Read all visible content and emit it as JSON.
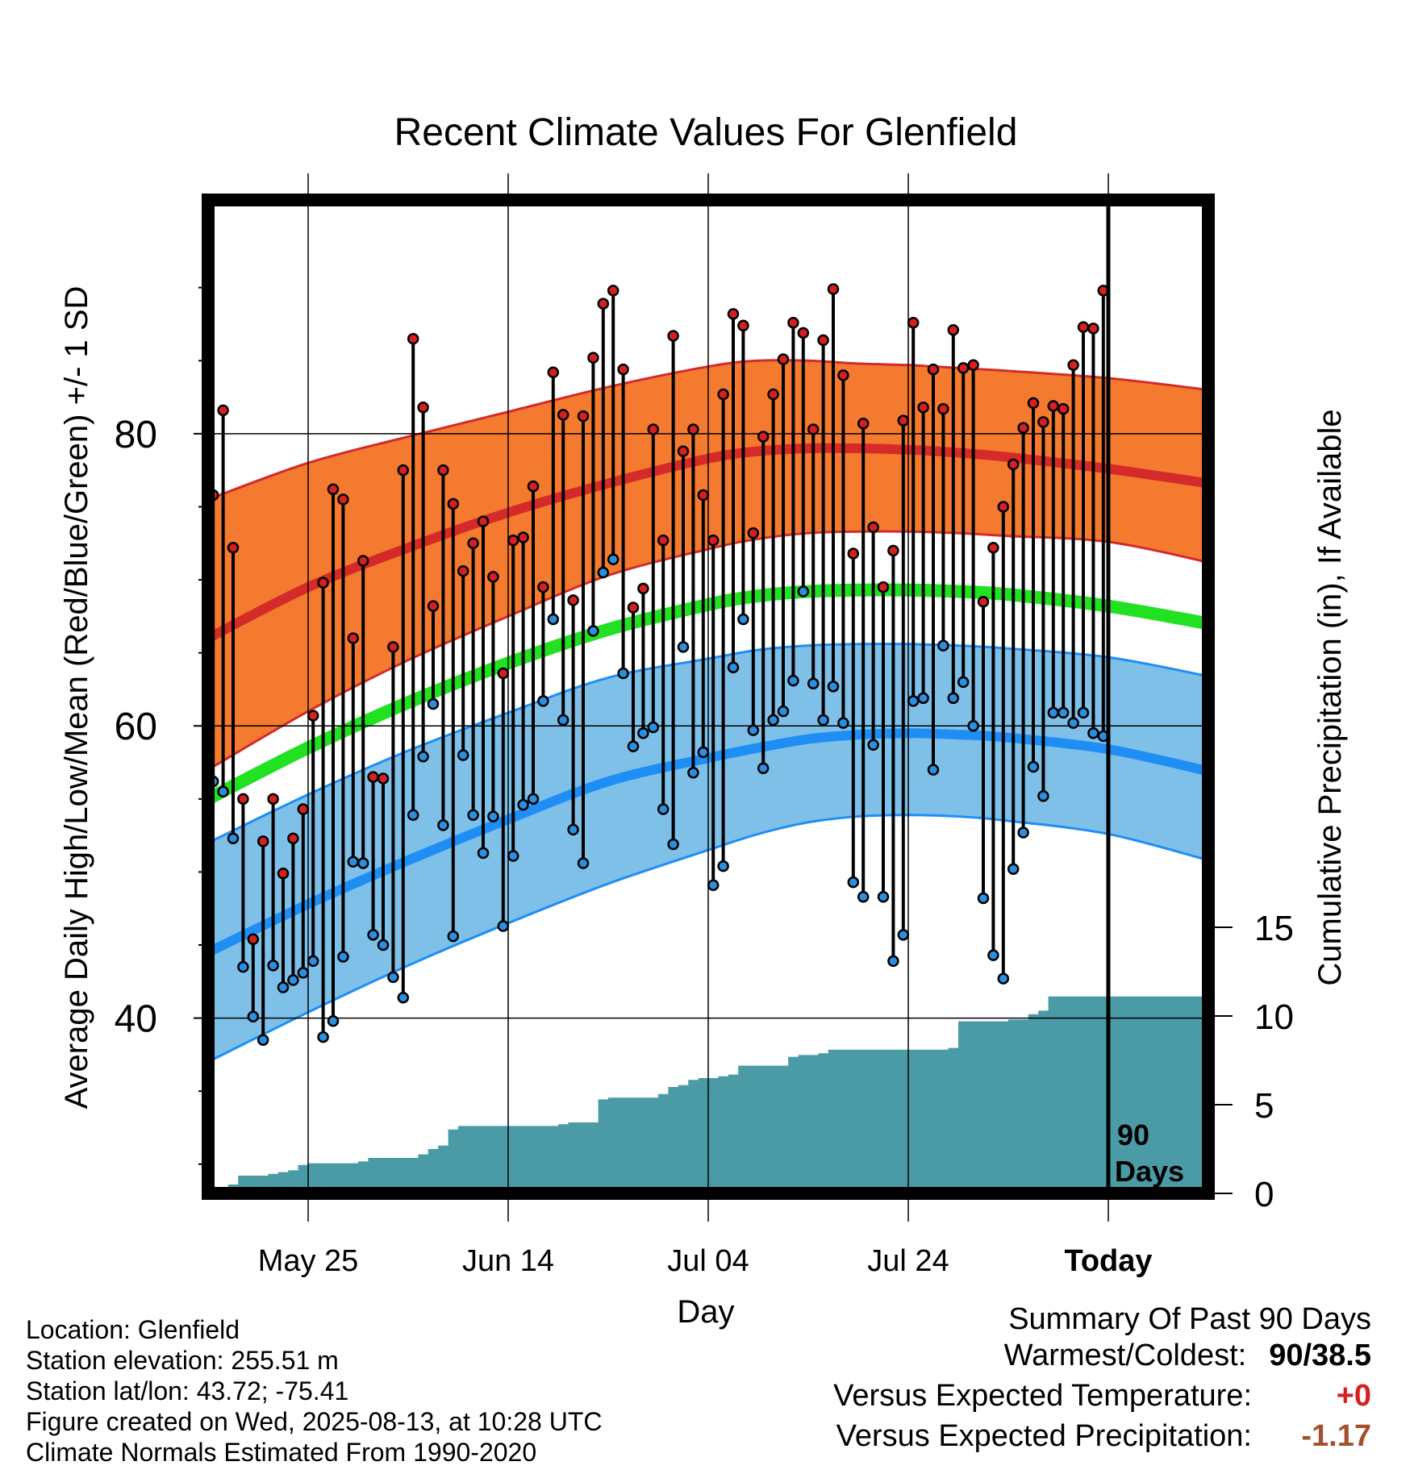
{
  "colors": {
    "frame": "#000000",
    "high_band": "#f47a30",
    "high_mean_line": "#d42a2a",
    "low_band": "#7fc0e8",
    "low_mean_line": "#1e8ef5",
    "mean_line": "#22e022",
    "precip_fill": "#4a9ba5",
    "high_dot": "#d62020",
    "low_dot": "#2a8fe0",
    "temp_diff": "#d62020",
    "precip_diff": "#a0522d"
  },
  "chart_data": {
    "type": "line",
    "title": "Recent Climate Values For Glenfield",
    "xlabel": "Day",
    "ylabel": "Average Daily High/Low/Mean (Red/Blue/Green) +/- 1 SD",
    "y2label": "Cumulative Precipitation (in), If Available",
    "ylim": [
      28,
      96
    ],
    "y2lim": [
      0,
      56
    ],
    "yticks": [
      40,
      60,
      80
    ],
    "y2ticks": [
      0,
      5,
      10,
      15
    ],
    "xlim": [
      0,
      100
    ],
    "xticks": [
      {
        "x": 10,
        "label": "May 25"
      },
      {
        "x": 30,
        "label": "Jun 14"
      },
      {
        "x": 50,
        "label": "Jul 04"
      },
      {
        "x": 70,
        "label": "Jul 24"
      },
      {
        "x": 90,
        "label": "Today"
      }
    ],
    "today_x": 90,
    "today_label": [
      "90",
      "Days"
    ],
    "grid": true,
    "normals": {
      "x": [
        0,
        10,
        20,
        30,
        40,
        50,
        55,
        60,
        65,
        70,
        75,
        80,
        90,
        100
      ],
      "high_mean": [
        66,
        69.5,
        72.2,
        74.6,
        76.6,
        78.3,
        78.8,
        79,
        79,
        78.9,
        78.7,
        78.4,
        77.6,
        76.6
      ],
      "high_upper": [
        75.5,
        78,
        79.8,
        81.5,
        83.2,
        84.6,
        85,
        85,
        84.8,
        84.7,
        84.5,
        84.3,
        83.8,
        83
      ],
      "high_lower": [
        57,
        61,
        64.5,
        67.5,
        70.3,
        72.1,
        72.8,
        73.2,
        73.3,
        73.3,
        73.2,
        73,
        72.6,
        71.2
      ],
      "mean": [
        55,
        58.5,
        61.6,
        64.3,
        66.6,
        68.3,
        68.9,
        69.2,
        69.3,
        69.3,
        69.2,
        69,
        68.2,
        67
      ],
      "low_mean": [
        44.5,
        47.8,
        50.8,
        53.6,
        56.2,
        57.8,
        58.5,
        59.1,
        59.4,
        59.5,
        59.4,
        59.2,
        58.4,
        56.9
      ],
      "low_upper": [
        52,
        55.3,
        58.3,
        60.9,
        63.3,
        64.6,
        65.2,
        65.5,
        65.6,
        65.6,
        65.5,
        65.3,
        64.7,
        63.4
      ],
      "low_lower": [
        37,
        40.4,
        43.6,
        46.5,
        49.2,
        51.5,
        52.6,
        53.4,
        53.8,
        53.9,
        53.8,
        53.5,
        52.6,
        50.8
      ]
    },
    "series": [
      {
        "name": "High",
        "x": [
          0,
          1,
          2,
          3,
          4,
          5,
          6,
          7,
          8,
          9,
          10,
          11,
          12,
          13,
          14,
          15,
          16,
          17,
          18,
          19,
          20,
          21,
          22,
          23,
          24,
          25,
          26,
          27,
          28,
          29,
          30,
          31,
          32,
          33,
          34,
          35,
          36,
          37,
          38,
          39,
          40,
          41,
          42,
          43,
          44,
          45,
          46,
          47,
          48,
          49,
          50,
          51,
          52,
          53,
          54,
          55,
          56,
          57,
          58,
          59,
          60,
          61,
          62,
          63,
          64,
          65,
          66,
          67,
          68,
          69,
          70,
          71,
          72,
          73,
          74,
          75,
          76,
          77,
          78,
          79,
          80,
          81,
          82,
          83,
          84,
          85,
          86,
          87,
          88,
          89
        ],
        "values": [
          75.8,
          81.6,
          72.2,
          55,
          45.4,
          52.1,
          55,
          49.9,
          52.3,
          54.3,
          60.7,
          69.8,
          76.2,
          75.5,
          66,
          71.3,
          56.5,
          56.4,
          65.4,
          77.5,
          86.5,
          81.8,
          68.2,
          77.5,
          75.2,
          70.6,
          72.5,
          74,
          70.2,
          63.6,
          72.7,
          72.9,
          76.4,
          69.5,
          84.2,
          81.3,
          68.6,
          81.2,
          85.2,
          88.9,
          89.8,
          84.4,
          68.1,
          69.4,
          80.3,
          72.7,
          86.7,
          78.8,
          80.3,
          75.8,
          72.7,
          82.7,
          88.2,
          87.4,
          73.2,
          79.8,
          82.7,
          85.1,
          87.6,
          86.9,
          80.3,
          86.4,
          89.9,
          84,
          71.8,
          80.7,
          73.6,
          69.5,
          72,
          80.9,
          87.6,
          81.8,
          84.4,
          81.7,
          87.1,
          84.5,
          84.7,
          68.5,
          72.2,
          75,
          77.9,
          80.4,
          82.1,
          80.8,
          81.9,
          81.7,
          84.7,
          87.3,
          87.2,
          89.8
        ]
      },
      {
        "name": "Low",
        "x": [
          0,
          1,
          2,
          3,
          4,
          5,
          6,
          7,
          8,
          9,
          10,
          11,
          12,
          13,
          14,
          15,
          16,
          17,
          18,
          19,
          20,
          21,
          22,
          23,
          24,
          25,
          26,
          27,
          28,
          29,
          30,
          31,
          32,
          33,
          34,
          35,
          36,
          37,
          38,
          39,
          40,
          41,
          42,
          43,
          44,
          45,
          46,
          47,
          48,
          49,
          50,
          51,
          52,
          53,
          54,
          55,
          56,
          57,
          58,
          59,
          60,
          61,
          62,
          63,
          64,
          65,
          66,
          67,
          68,
          69,
          70,
          71,
          72,
          73,
          74,
          75,
          76,
          77,
          78,
          79,
          80,
          81,
          82,
          83,
          84,
          85,
          86,
          87,
          88,
          89
        ],
        "values": [
          56.2,
          55.5,
          52.3,
          43.5,
          40.1,
          38.5,
          43.6,
          42.1,
          42.6,
          43.1,
          43.9,
          38.7,
          39.8,
          44.2,
          50.7,
          50.6,
          45.7,
          45,
          42.8,
          41.4,
          53.9,
          57.9,
          61.5,
          53.2,
          45.6,
          58,
          53.9,
          51.3,
          53.8,
          46.3,
          51.1,
          54.6,
          55,
          61.7,
          67.3,
          60.4,
          52.9,
          50.6,
          66.5,
          70.5,
          71.4,
          63.6,
          58.6,
          59.5,
          59.9,
          54.3,
          51.9,
          65.4,
          56.8,
          58.2,
          49.1,
          50.4,
          64,
          67.3,
          59.7,
          57.1,
          60.4,
          61,
          63.1,
          69.2,
          62.9,
          60.4,
          62.7,
          60.2,
          49.3,
          48.3,
          58.7,
          48.3,
          43.9,
          45.7,
          61.7,
          61.9,
          57,
          65.5,
          61.9,
          63,
          60,
          48.2,
          44.3,
          42.7,
          50.2,
          52.7,
          57.2,
          55.2,
          60.9,
          60.9,
          60.2,
          60.9,
          59.5,
          59.3
        ]
      }
    ],
    "precipitation": {
      "x": [
        0,
        1,
        2,
        3,
        4,
        5,
        6,
        7,
        8,
        9,
        10,
        11,
        12,
        13,
        14,
        15,
        16,
        17,
        18,
        19,
        20,
        21,
        22,
        23,
        24,
        25,
        26,
        27,
        28,
        29,
        30,
        31,
        32,
        33,
        34,
        35,
        36,
        37,
        38,
        39,
        40,
        41,
        42,
        43,
        44,
        45,
        46,
        47,
        48,
        49,
        50,
        51,
        52,
        53,
        54,
        55,
        56,
        57,
        58,
        59,
        60,
        61,
        62,
        63,
        64,
        65,
        66,
        67,
        68,
        69,
        70,
        71,
        72,
        73,
        74,
        75,
        76,
        77,
        78,
        79,
        80,
        81,
        82,
        83,
        84,
        85,
        86,
        87,
        88,
        89,
        90,
        91,
        92,
        93,
        94,
        95,
        96,
        97,
        98,
        99,
        100
      ],
      "values": [
        0,
        0,
        0.5,
        1,
        1,
        1,
        1.1,
        1.2,
        1.3,
        1.6,
        1.7,
        1.7,
        1.7,
        1.7,
        1.7,
        1.8,
        2,
        2,
        2,
        2,
        2,
        2.2,
        2.5,
        2.7,
        3.6,
        3.8,
        3.8,
        3.8,
        3.8,
        3.8,
        3.8,
        3.8,
        3.8,
        3.8,
        3.8,
        3.9,
        4,
        4,
        4,
        5.3,
        5.4,
        5.4,
        5.4,
        5.4,
        5.4,
        5.6,
        6,
        6.1,
        6.4,
        6.5,
        6.5,
        6.6,
        6.7,
        7.2,
        7.2,
        7.2,
        7.2,
        7.2,
        7.7,
        7.8,
        7.8,
        7.9,
        8.1,
        8.1,
        8.1,
        8.1,
        8.1,
        8.1,
        8.1,
        8.1,
        8.1,
        8.1,
        8.1,
        8.1,
        8.2,
        9.7,
        9.7,
        9.7,
        9.7,
        9.7,
        9.8,
        9.8,
        10.1,
        10.3,
        11.1,
        11.1,
        11.1,
        11.1,
        11.1,
        11.1,
        11.1,
        11.1,
        11.1,
        11.1,
        11.1,
        11.1,
        11.1,
        11.1,
        11.1,
        11.1,
        11.1
      ]
    }
  },
  "info": {
    "location": "Location: Glenfield",
    "elevation": "Station elevation: 255.51 m",
    "latlon": "Station lat/lon: 43.72; -75.41",
    "created": "Figure created on Wed, 2025-08-13, at 10:28 UTC",
    "normals": "Climate Normals Estimated From 1990-2020"
  },
  "summary": {
    "heading": "Summary Of Past 90 Days",
    "warmest_coldest_label": "Warmest/Coldest:",
    "warmest_coldest_value": "90/38.5",
    "temp_label": "Versus Expected Temperature:",
    "temp_value": "+0",
    "precip_label": "Versus Expected Precipitation:",
    "precip_value": "-1.17"
  }
}
